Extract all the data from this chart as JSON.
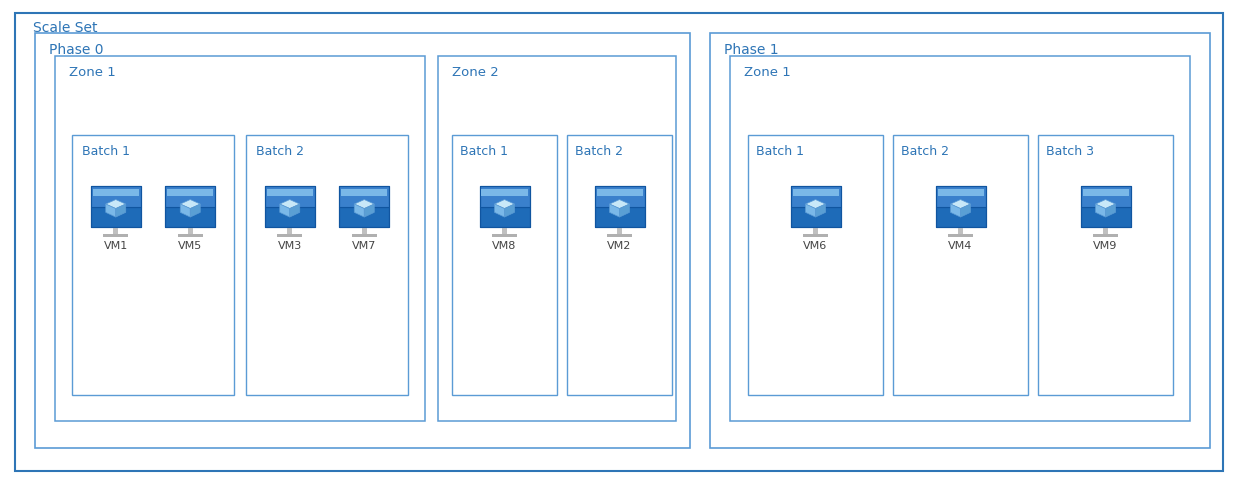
{
  "background_color": "#ffffff",
  "fig_width": 12.38,
  "fig_height": 4.83,
  "border_color": "#5b9bd5",
  "border_color_dark": "#2e75b6",
  "fill_light": "#dce9f7",
  "fill_white": "#ffffff",
  "text_color": "#2e75b6",
  "scale_set_label": "Scale Set",
  "phase0_label": "Phase 0",
  "phase1_label": "Phase 1",
  "zone1_label": "Zone 1",
  "zone2_label": "Zone 2",
  "batch_labels": [
    "Batch 1",
    "Batch 2",
    "Batch 3"
  ],
  "vm_color_body": "#1e6bb8",
  "vm_color_body_light": "#4a90d9",
  "vm_color_screen_top": "#a8d4f0",
  "vm_color_screen_mid": "#7bbfe8",
  "vm_color_cube": "#b8dcf0",
  "vm_color_stand": "#c8c8c8",
  "vm_color_base": "#b0b0b0"
}
